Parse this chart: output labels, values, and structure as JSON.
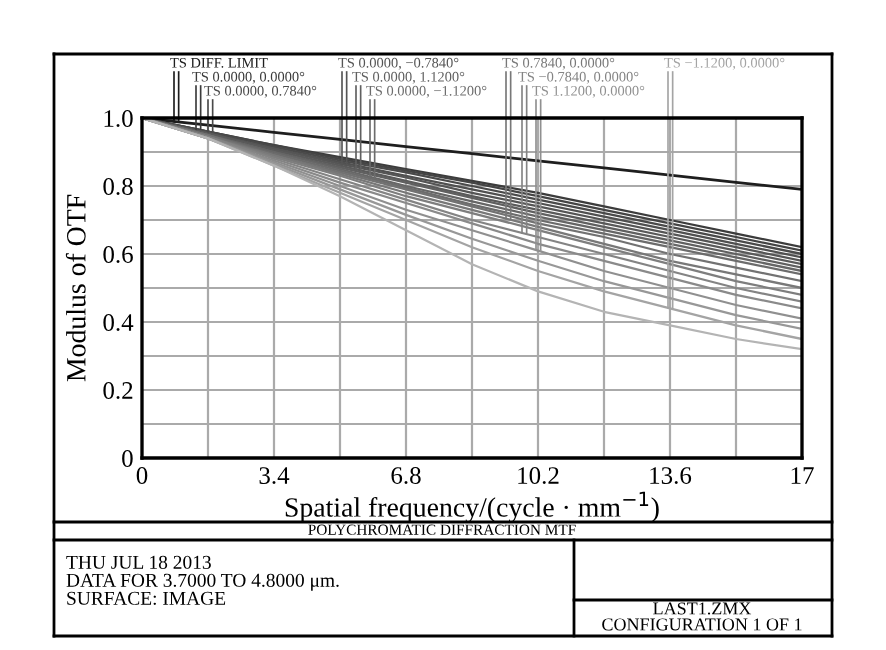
{
  "chart_data": {
    "type": "line",
    "title": "POLYCHROMATIC DIFFRACTION MTF",
    "xlabel": "Spatial frequency/(cycle · mm$^{−1}$)",
    "ylabel": "Modulus of OTF",
    "x": [
      0,
      1.7,
      3.4,
      5.1,
      6.8,
      8.5,
      10.2,
      11.9,
      13.6,
      15.3,
      17
    ],
    "xlim": [
      0,
      17
    ],
    "ylim": [
      0,
      1.0
    ],
    "xticks": [
      0,
      {
        "value": 1.7,
        "label": null
      },
      3.4,
      {
        "value": 5.1,
        "label": null
      },
      6.8,
      {
        "value": 8.5,
        "label": null
      },
      10.2,
      {
        "value": 11.9,
        "label": null
      },
      13.6,
      {
        "value": 15.3,
        "label": null
      },
      17
    ],
    "yticks": [
      0,
      {
        "value": 0.1,
        "label": null
      },
      0.2,
      {
        "value": 0.3,
        "label": null
      },
      0.4,
      {
        "value": 0.5,
        "label": null
      },
      0.6,
      {
        "value": 0.7,
        "label": null
      },
      0.8,
      {
        "value": 0.9,
        "label": null
      },
      {
        "value": 1.0,
        "label": "1.0"
      }
    ],
    "grid": true,
    "legend": "top",
    "marker": "none",
    "line_style": "solid",
    "series": [
      {
        "name": "TS DIFF. LIMIT",
        "color": "#1e1e1e",
        "values": [
          1,
          0.979,
          0.958,
          0.937,
          0.916,
          0.895,
          0.874,
          0.853,
          0.832,
          0.811,
          0.79
        ]
      },
      {
        "name": "TS 0.0000, 0.0000°",
        "color": "#3c3c3c",
        "values": [
          1,
          0.96,
          0.92,
          0.885,
          0.85,
          0.815,
          0.78,
          0.74,
          0.7,
          0.66,
          0.62
        ]
      },
      {
        "color": "#444444",
        "values": [
          1,
          0.96,
          0.92,
          0.88,
          0.845,
          0.81,
          0.77,
          0.73,
          0.69,
          0.65,
          0.61
        ]
      },
      {
        "name": "TS 0.0000, 0.7840°",
        "color": "#4a4a4a",
        "values": [
          1,
          0.96,
          0.915,
          0.875,
          0.84,
          0.8,
          0.76,
          0.72,
          0.68,
          0.64,
          0.6
        ]
      },
      {
        "color": "#505050",
        "values": [
          1,
          0.955,
          0.91,
          0.87,
          0.83,
          0.79,
          0.75,
          0.71,
          0.67,
          0.63,
          0.59
        ]
      },
      {
        "name": "TS 0.0000, −0.7840°",
        "color": "#555555",
        "values": [
          1,
          0.955,
          0.91,
          0.865,
          0.825,
          0.78,
          0.74,
          0.7,
          0.66,
          0.62,
          0.58
        ]
      },
      {
        "color": "#5a5a5a",
        "values": [
          1,
          0.955,
          0.905,
          0.86,
          0.815,
          0.77,
          0.73,
          0.69,
          0.65,
          0.61,
          0.57
        ]
      },
      {
        "name": "TS 0.0000, 1.1200°",
        "color": "#606060",
        "values": [
          1,
          0.95,
          0.9,
          0.855,
          0.81,
          0.765,
          0.72,
          0.68,
          0.64,
          0.6,
          0.56
        ]
      },
      {
        "color": "#666666",
        "values": [
          1,
          0.95,
          0.9,
          0.85,
          0.8,
          0.755,
          0.71,
          0.67,
          0.63,
          0.59,
          0.55
        ]
      },
      {
        "name": "TS 0.0000, −1.1200°",
        "color": "#6c6c6c",
        "values": [
          1,
          0.95,
          0.895,
          0.845,
          0.795,
          0.745,
          0.7,
          0.66,
          0.62,
          0.58,
          0.54
        ]
      },
      {
        "color": "#727272",
        "values": [
          1,
          0.95,
          0.89,
          0.84,
          0.79,
          0.74,
          0.69,
          0.65,
          0.6,
          0.56,
          0.52
        ]
      },
      {
        "name": "TS 0.7840, 0.0000°",
        "color": "#787878",
        "values": [
          1,
          0.945,
          0.89,
          0.835,
          0.78,
          0.73,
          0.68,
          0.63,
          0.58,
          0.54,
          0.5
        ]
      },
      {
        "color": "#7e7e7e",
        "values": [
          1,
          0.945,
          0.885,
          0.83,
          0.77,
          0.72,
          0.67,
          0.62,
          0.57,
          0.52,
          0.48
        ]
      },
      {
        "name": "TS −0.7840, 0.0000°",
        "color": "#848484",
        "values": [
          1,
          0.945,
          0.88,
          0.82,
          0.76,
          0.7,
          0.65,
          0.6,
          0.55,
          0.5,
          0.46
        ]
      },
      {
        "color": "#8a8a8a",
        "values": [
          1,
          0.94,
          0.875,
          0.81,
          0.75,
          0.69,
          0.63,
          0.58,
          0.53,
          0.48,
          0.44
        ]
      },
      {
        "name": "TS 1.1200, 0.0000°",
        "color": "#909090",
        "values": [
          1,
          0.94,
          0.87,
          0.8,
          0.73,
          0.67,
          0.61,
          0.55,
          0.5,
          0.45,
          0.41
        ]
      },
      {
        "color": "#989898",
        "values": [
          1,
          0.94,
          0.865,
          0.79,
          0.715,
          0.645,
          0.58,
          0.52,
          0.47,
          0.42,
          0.38
        ]
      },
      {
        "name": "TS −1.1200, 0.0000°",
        "color": "#a4a4a4",
        "values": [
          1,
          0.94,
          0.86,
          0.78,
          0.7,
          0.62,
          0.55,
          0.49,
          0.44,
          0.39,
          0.35
        ]
      },
      {
        "color": "#b4b4b4",
        "values": [
          1,
          0.94,
          0.86,
          0.77,
          0.67,
          0.57,
          0.49,
          0.43,
          0.39,
          0.35,
          0.32
        ]
      }
    ],
    "annotations": [
      "THU JUL 18 2013",
      "DATA FOR 3.7000 TO 4.8000 μm.",
      "SURFACE: IMAGE",
      "LAST1.ZMX",
      "CONFIGURATION 1 OF 1"
    ]
  }
}
